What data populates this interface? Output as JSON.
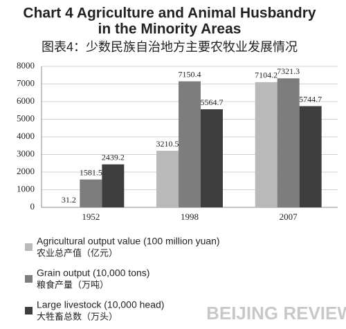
{
  "chart_data": {
    "type": "bar",
    "title": "Chart 4  Agriculture and Animal Husbandry",
    "title_line2": "in the Minority Areas",
    "subtitle": "图表4：少数民族自治地方主要农牧业发展情况",
    "categories": [
      "1952",
      "1998",
      "2007"
    ],
    "series": [
      {
        "name": "Agricultural output value (100 million yuan)",
        "name_cn": "农业总产值（亿元）",
        "color": "#b9b9b9",
        "values": [
          31.2,
          3210.5,
          7104.2
        ]
      },
      {
        "name": "Grain output (10,000 tons)",
        "name_cn": "粮食产量（万吨）",
        "color": "#7d7d7d",
        "values": [
          1581.5,
          7150.4,
          7321.3
        ]
      },
      {
        "name": "Large livestock (10,000 head)",
        "name_cn": "大牲畜总数（万头）",
        "color": "#3d3d3d",
        "values": [
          2439.2,
          5564.7,
          5744.7
        ]
      }
    ],
    "ylim": [
      0,
      8000
    ],
    "yticks": [
      0,
      1000,
      2000,
      3000,
      4000,
      5000,
      6000,
      7000,
      8000
    ],
    "grid": true,
    "watermark": "BEIJING REVIEW"
  }
}
